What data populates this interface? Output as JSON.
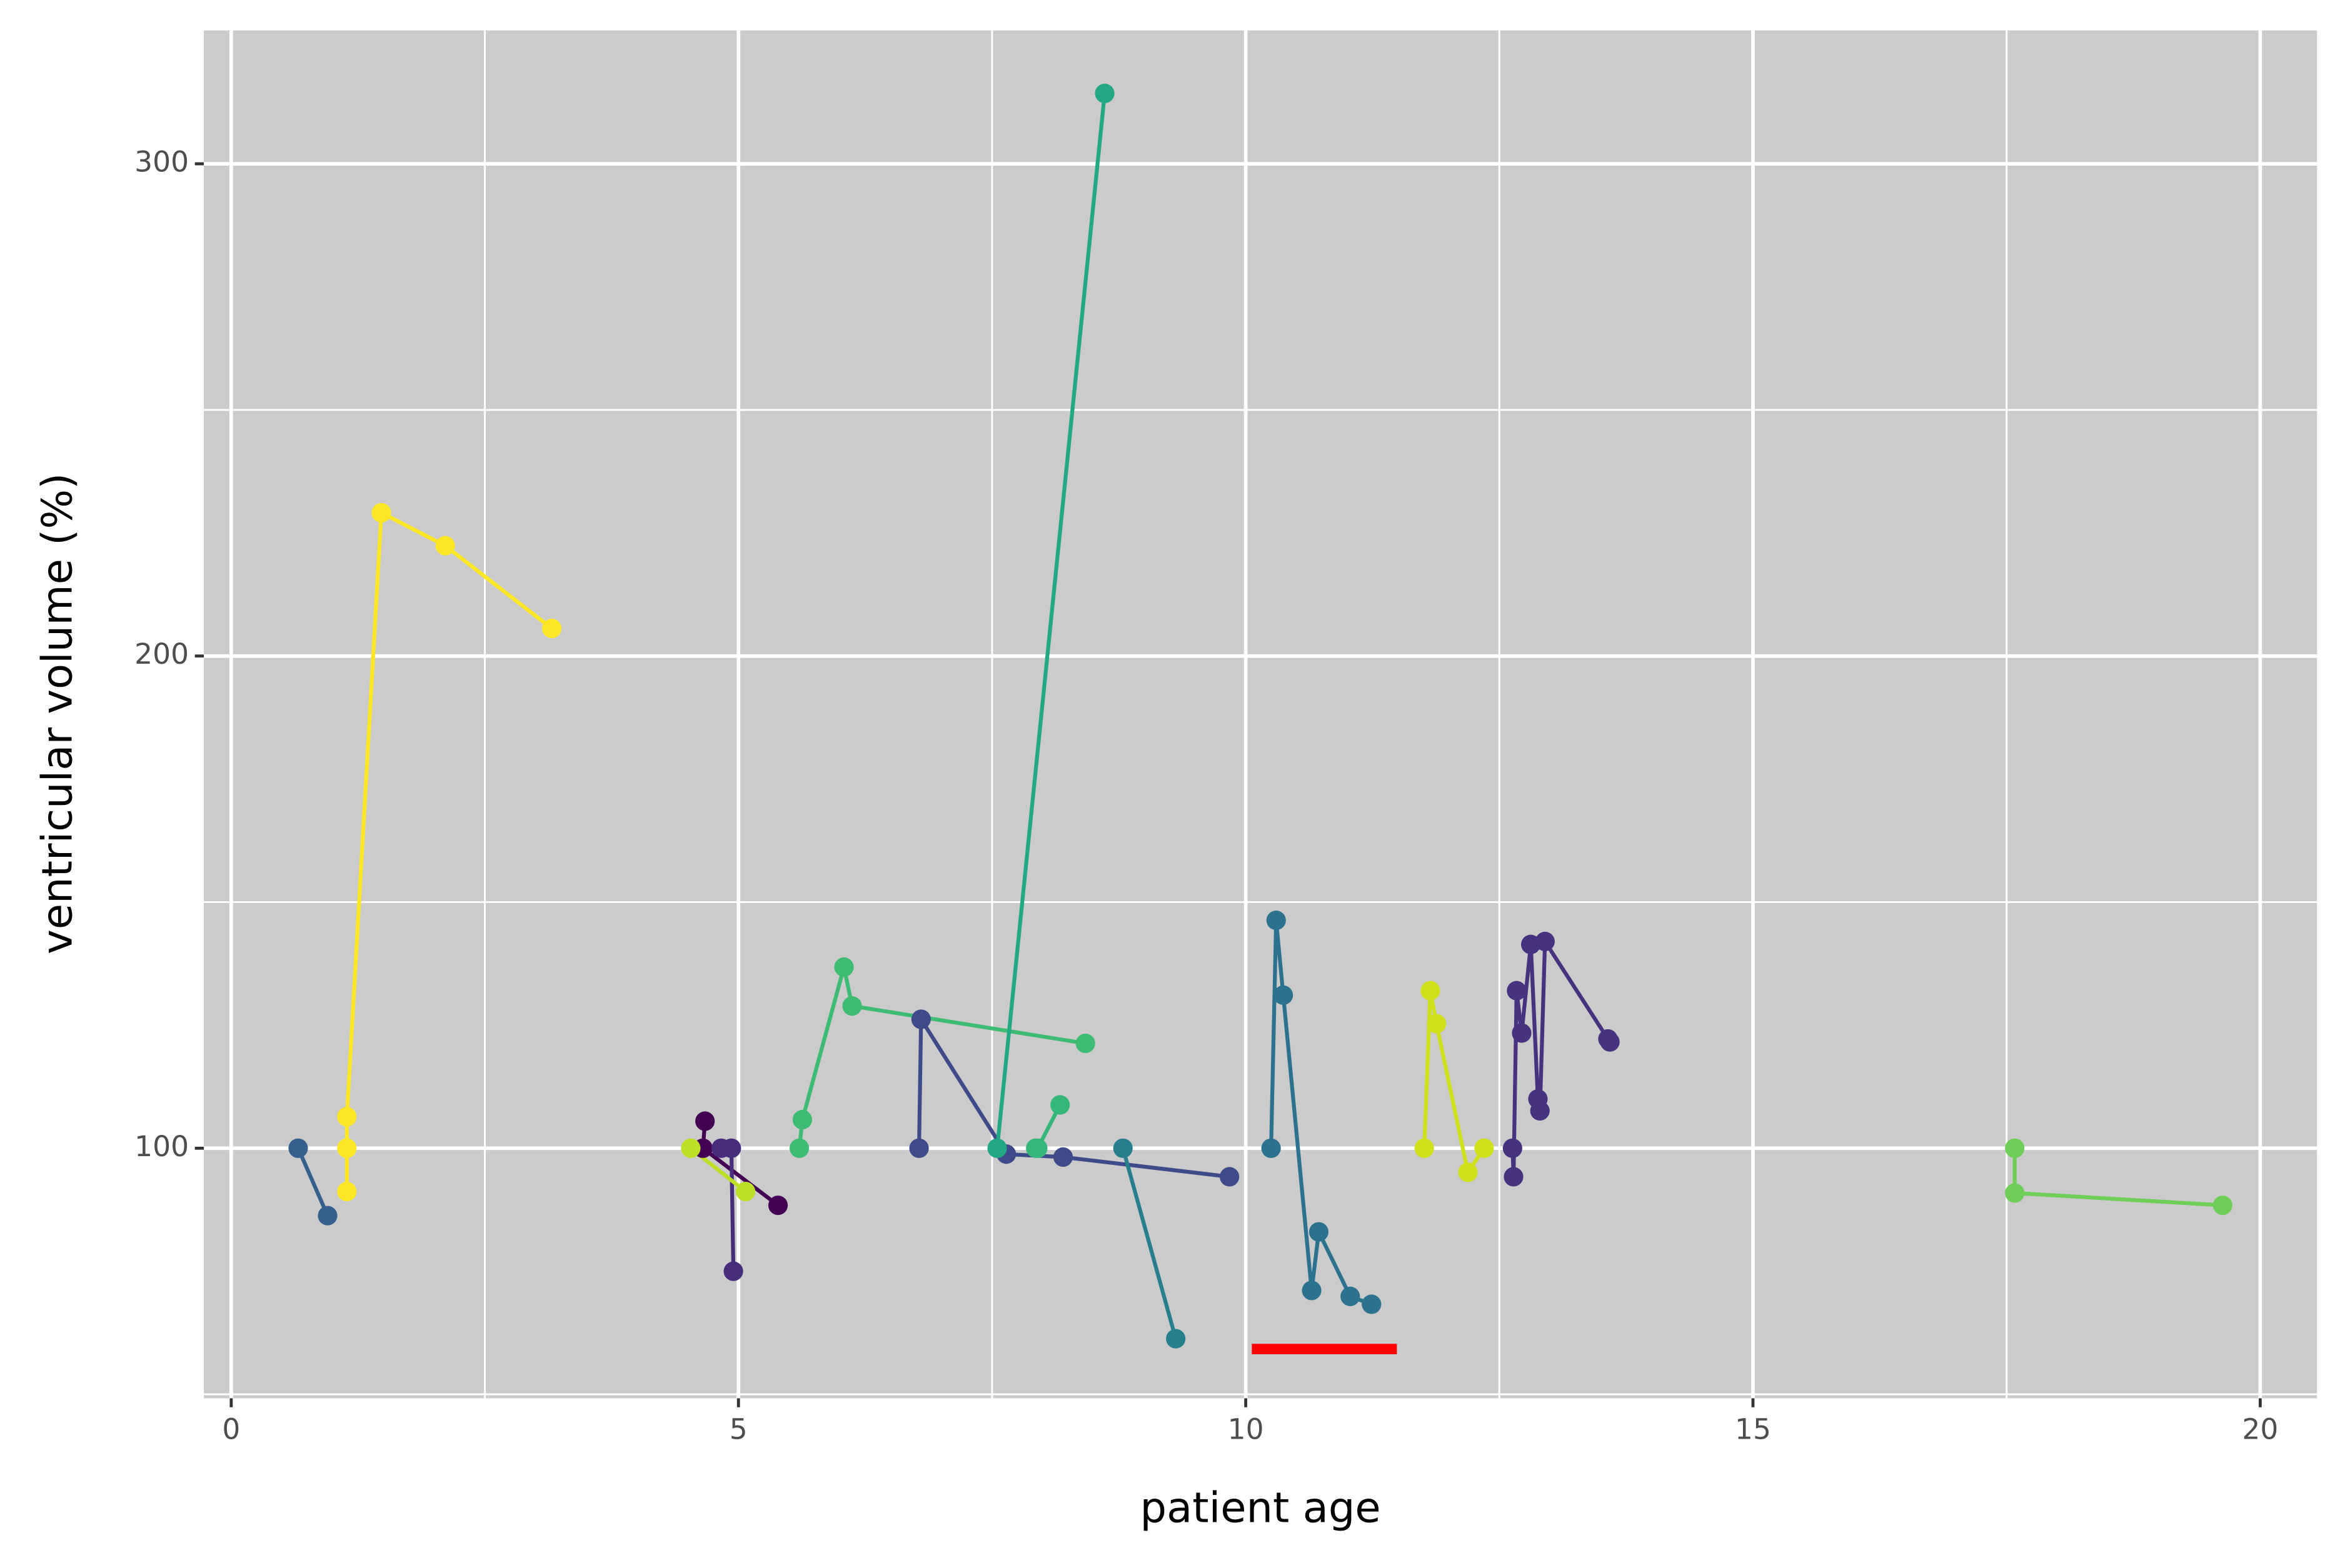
{
  "chart_data": {
    "type": "line",
    "x_label": "patient age",
    "y_label": "ventricular volume (%)",
    "xlim": [
      -0.27,
      20.56
    ],
    "ylim": [
      49.2,
      327.1
    ],
    "xticks": [
      0,
      5,
      10,
      15,
      20
    ],
    "yticks": [
      100,
      200,
      300
    ],
    "x_minor_ticks": [
      2.5,
      7.5,
      12.5,
      17.5
    ],
    "y_minor_ticks": [
      50,
      150,
      250
    ],
    "grid": true,
    "background": "#cbcbcb",
    "series": [
      {
        "color": "#fde725",
        "x": [
          1.14,
          1.14,
          1.14,
          1.48,
          2.11,
          3.16
        ],
        "values": [
          91.2,
          100,
          106.4,
          229.1,
          222.4,
          205.6
        ]
      },
      {
        "color": "#35608d",
        "x": [
          0.66,
          0.95
        ],
        "values": [
          100,
          86.3
        ]
      },
      {
        "color": "#440154",
        "x": [
          4.67,
          4.65,
          5.39
        ],
        "values": [
          105.5,
          100,
          88.4
        ]
      },
      {
        "color": "#472d7b",
        "x": [
          4.83,
          4.93,
          4.95
        ],
        "values": [
          100,
          100,
          75.0
        ]
      },
      {
        "color": "#bddf26",
        "x": [
          4.53,
          5.07
        ],
        "values": [
          100,
          91.2
        ]
      },
      {
        "color": "#3fbc73",
        "x": [
          5.6,
          5.63,
          6.04,
          6.12,
          8.42
        ],
        "values": [
          100,
          105.8,
          136.8,
          128.9,
          121.3
        ]
      },
      {
        "color": "#3e4a89",
        "x": [
          6.78,
          6.8,
          7.64,
          8.2,
          9.84
        ],
        "values": [
          100,
          126.2,
          98.8,
          98.2,
          94.2
        ]
      },
      {
        "color": "#22a884",
        "x": [
          7.55,
          8.61
        ],
        "values": [
          100,
          314.3
        ]
      },
      {
        "color": "#35b779",
        "x": [
          7.93,
          7.95,
          8.17
        ],
        "values": [
          100,
          100,
          108.8
        ]
      },
      {
        "color": "#277f8e",
        "x": [
          8.79,
          9.31
        ],
        "values": [
          100,
          61.3
        ]
      },
      {
        "color": "#2c728e",
        "x": [
          10.25,
          10.3,
          10.37,
          10.65,
          10.72,
          11.03,
          11.24
        ],
        "values": [
          100,
          146.3,
          131.1,
          71.1,
          83.0,
          69.9,
          68.3
        ]
      },
      {
        "color": "#d0e11c",
        "x": [
          11.76,
          11.82,
          11.88,
          12.19,
          12.35
        ],
        "values": [
          100,
          132.0,
          125.3,
          95.1,
          100
        ]
      },
      {
        "color": "#46327e",
        "x": [
          12.63,
          12.64,
          12.67,
          12.72,
          12.81,
          12.88,
          12.9,
          12.95,
          13.57,
          13.59
        ],
        "values": [
          100,
          94.2,
          132.0,
          123.4,
          141.4,
          110.0,
          107.6,
          142.0,
          122.2,
          121.6
        ]
      },
      {
        "color": "#6ece58",
        "x": [
          17.58,
          17.58,
          19.63
        ],
        "values": [
          100,
          90.9,
          88.4
        ]
      }
    ],
    "highlight_segment": {
      "color": "#ff0000",
      "x": [
        10.06,
        11.49
      ],
      "y": 59.2
    }
  }
}
